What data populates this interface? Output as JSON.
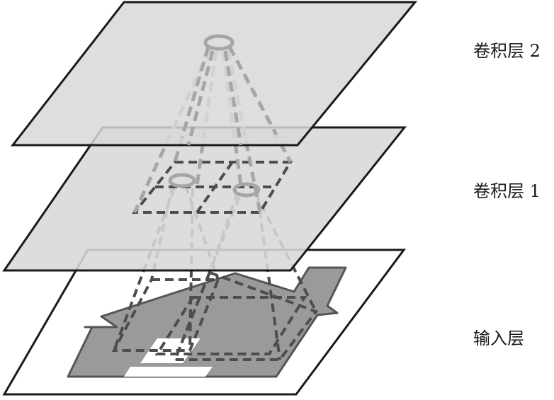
{
  "layers": {
    "conv2": {
      "label": "卷积层 2"
    },
    "conv1": {
      "label": "卷积层 1"
    },
    "input": {
      "label": "输入层"
    }
  },
  "colors": {
    "plane_fill": "#d8d8d8",
    "input_fill": "#ffffff",
    "outline": "#1a1a1a",
    "house_fill": "#9a9a9a",
    "dash_dark": "#4d4d4d",
    "dash_light": "#a6a6a6"
  }
}
